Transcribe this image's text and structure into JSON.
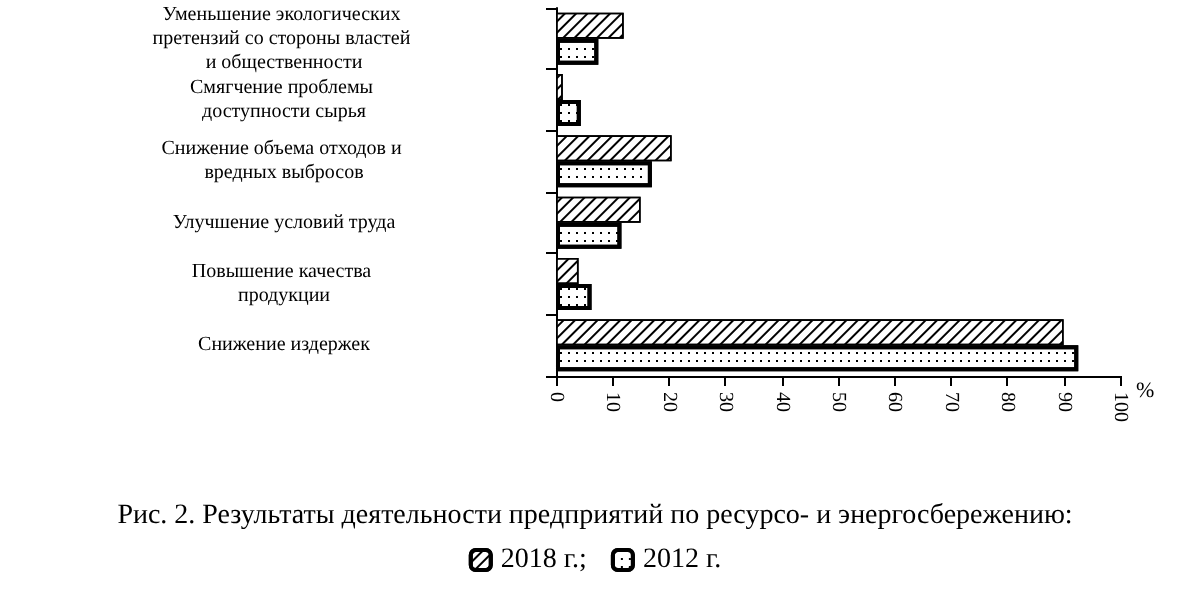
{
  "chart_data": {
    "type": "bar",
    "orientation": "horizontal",
    "title": "Рис. 2. Результаты деятельности предприятий по ресурсо- и энергосбережению:",
    "xlabel": "%",
    "categories": [
      "Уменьшение экологических претензий со стороны властей и общественности",
      "Смягчение проблемы доступности сырья",
      "Снижение объема отходов и вредных выбросов",
      "Улучшение условий труда",
      "Повышение качества продукции",
      "Снижение издержек"
    ],
    "series": [
      {
        "name": "2018 г.;",
        "color": "#ffffff",
        "values": [
          12,
          1.2,
          20.5,
          15,
          4,
          90
        ]
      },
      {
        "name": "2012 г.",
        "color": "#ffffff",
        "values": [
          7.5,
          4.4,
          17,
          11.6,
          6.3,
          92.6
        ]
      }
    ],
    "xlim": [
      0,
      100
    ],
    "xticks": [
      0,
      10,
      20,
      30,
      40,
      50,
      60,
      70,
      80,
      90,
      100
    ],
    "grid": false,
    "legend": "bottom"
  }
}
